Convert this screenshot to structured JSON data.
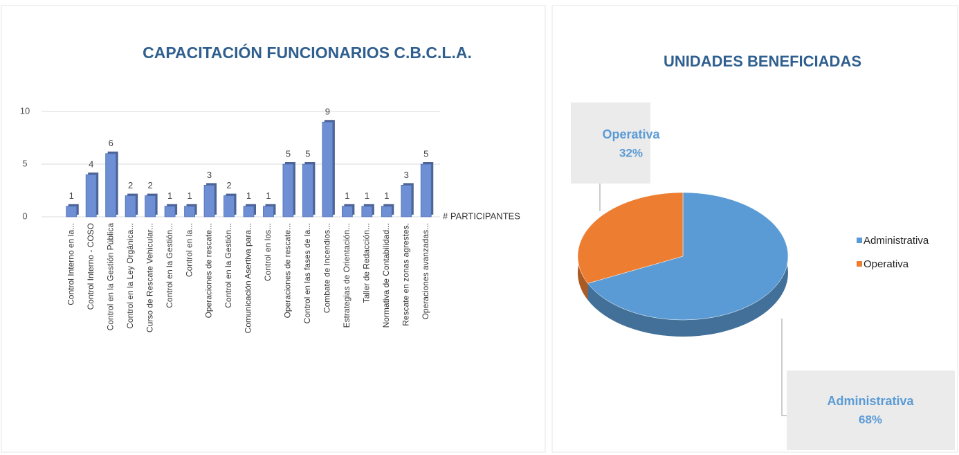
{
  "chart_data": [
    {
      "type": "bar",
      "title": "CAPACITACIÓN  FUNCIONARIOS  C.B.C.L.A.",
      "categories": [
        "Control Interno en la...",
        "Control Interno - COSO",
        "Control en la Gestión Pública",
        "Control en la Ley Orgánica...",
        "Curso de Rescate Vehicular...",
        "Control en la Gestión...",
        "Control en la...",
        "Operaciones de rescate...",
        "Control en la Gestión...",
        "Comunicación Asertiva para...",
        "Control en los...",
        "Operaciones de rescate...",
        "Control en las fases de la...",
        "Combate de Incendios...",
        "Estrategias de Orientación...",
        "Taller de Redacción...",
        "Normativa de Contabilidad...",
        "Rescate en zonas agrestes.",
        "Operaciones avanzadas..."
      ],
      "series": [
        {
          "name": "# PARTICIPANTES",
          "color": "#6f8fd4",
          "values": [
            1,
            4,
            6,
            2,
            2,
            1,
            1,
            3,
            2,
            1,
            1,
            5,
            5,
            9,
            1,
            1,
            1,
            3,
            5
          ]
        }
      ],
      "ylim": [
        0,
        10
      ],
      "yticks": [
        0,
        5,
        10
      ],
      "grid": true,
      "legend": "right"
    },
    {
      "type": "pie",
      "title": "UNIDADES BENEFICIADAS",
      "categories": [
        "Administrativa",
        "Operativa"
      ],
      "values": [
        68,
        32
      ],
      "value_labels": [
        "68%",
        "32%"
      ],
      "colors": [
        "#5b9bd5",
        "#ed7d31"
      ],
      "legend": "right"
    }
  ]
}
